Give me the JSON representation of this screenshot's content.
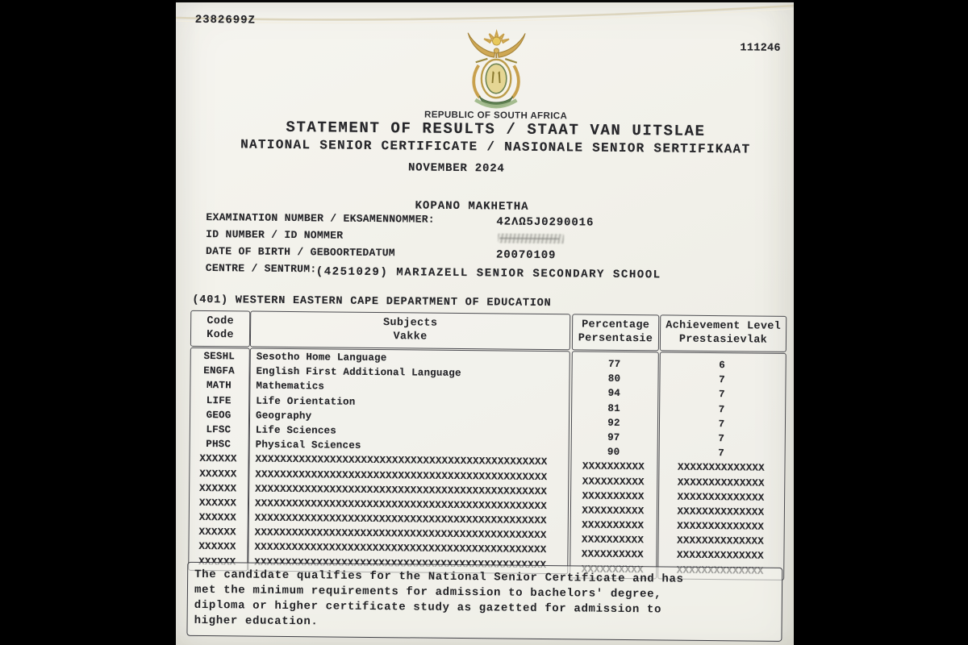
{
  "colors": {
    "background": "#000000",
    "paper": "#f2f1ea",
    "ink": "#26262a",
    "arms_gold": "#c8a04c",
    "arms_green": "#5d7f50"
  },
  "page": {
    "serial_top_left": "2382699Z",
    "serial_top_right": "111246"
  },
  "header": {
    "coat_of_arms_icon": "south-africa-coat-of-arms",
    "republic_line": "REPUBLIC OF SOUTH AFRICA",
    "title_line1": "STATEMENT OF RESULTS / STAAT VAN UITSLAE",
    "title_line2": "NATIONAL SENIOR CERTIFICATE / NASIONALE SENIOR SERTIFIKAAT",
    "session": "NOVEMBER 2024"
  },
  "candidate": {
    "name": "KOPANO MAKHETHA",
    "fields": [
      {
        "label": "EXAMINATION NUMBER / EKSAMENNOMMER:",
        "value": "42ΛΩ5J0290016"
      },
      {
        "label": "ID NUMBER / ID NOMMER",
        "value": "",
        "redacted": true
      },
      {
        "label": "DATE OF BIRTH / GEBOORTEDATUM",
        "value": "20070109"
      },
      {
        "label": "CENTRE / SENTRUM:",
        "value": "(4251029) MARIAZELL SENIOR SECONDARY SCHOOL"
      }
    ]
  },
  "department_line": "(401) WESTERN EASTERN CAPE DEPARTMENT OF EDUCATION",
  "results_table": {
    "headers": {
      "code": [
        "Code",
        "Kode"
      ],
      "subjects": [
        "Subjects",
        "Vakke"
      ],
      "percentage": [
        "Percentage",
        "Persentasie"
      ],
      "achievement": [
        "Achievement Level",
        "Prestasievlak"
      ]
    },
    "rows": [
      {
        "code": "SESHL",
        "subject": "Sesotho Home Language",
        "percentage": "77",
        "level": "6"
      },
      {
        "code": "ENGFA",
        "subject": "English First Additional Language",
        "percentage": "80",
        "level": "7"
      },
      {
        "code": "MATH",
        "subject": "Mathematics",
        "percentage": "94",
        "level": "7"
      },
      {
        "code": "LIFE",
        "subject": "Life Orientation",
        "percentage": "81",
        "level": "7"
      },
      {
        "code": "GEOG",
        "subject": "Geography",
        "percentage": "92",
        "level": "7"
      },
      {
        "code": "LFSC",
        "subject": "Life Sciences",
        "percentage": "97",
        "level": "7"
      },
      {
        "code": "PHSC",
        "subject": "Physical Sciences",
        "percentage": "90",
        "level": "7"
      },
      {
        "code": "XXXXXX",
        "subject": "XXXXXXXXXXXXXXXXXXXXXXXXXXXXXXXXXXXXXXXXXXXXXXX",
        "percentage": "XXXXXXXXXX",
        "level": "XXXXXXXXXXXXXX"
      },
      {
        "code": "XXXXXX",
        "subject": "XXXXXXXXXXXXXXXXXXXXXXXXXXXXXXXXXXXXXXXXXXXXXXX",
        "percentage": "XXXXXXXXXX",
        "level": "XXXXXXXXXXXXXX"
      },
      {
        "code": "XXXXXX",
        "subject": "XXXXXXXXXXXXXXXXXXXXXXXXXXXXXXXXXXXXXXXXXXXXXXX",
        "percentage": "XXXXXXXXXX",
        "level": "XXXXXXXXXXXXXX"
      },
      {
        "code": "XXXXXX",
        "subject": "XXXXXXXXXXXXXXXXXXXXXXXXXXXXXXXXXXXXXXXXXXXXXXX",
        "percentage": "XXXXXXXXXX",
        "level": "XXXXXXXXXXXXXX"
      },
      {
        "code": "XXXXXX",
        "subject": "XXXXXXXXXXXXXXXXXXXXXXXXXXXXXXXXXXXXXXXXXXXXXXX",
        "percentage": "XXXXXXXXXX",
        "level": "XXXXXXXXXXXXXX"
      },
      {
        "code": "XXXXXX",
        "subject": "XXXXXXXXXXXXXXXXXXXXXXXXXXXXXXXXXXXXXXXXXXXXXXX",
        "percentage": "XXXXXXXXXX",
        "level": "XXXXXXXXXXXXXX"
      },
      {
        "code": "XXXXXX",
        "subject": "XXXXXXXXXXXXXXXXXXXXXXXXXXXXXXXXXXXXXXXXXXXXXXX",
        "percentage": "XXXXXXXXXX",
        "level": "XXXXXXXXXXXXXX"
      },
      {
        "code": "XXXXXX",
        "subject": "XXXXXXXXXXXXXXXXXXXXXXXXXXXXXXXXXXXXXXXXXXXXXXX",
        "percentage": "XXXXXXXXXX",
        "level": "XXXXXXXXXXXXXX"
      }
    ]
  },
  "statement": {
    "lines": [
      "The candidate qualifies for the National Senior Certificate and has",
      "met the minimum requirements for admission to bachelors' degree,",
      "diploma or higher certificate study as gazetted for admission to",
      "higher education."
    ]
  }
}
